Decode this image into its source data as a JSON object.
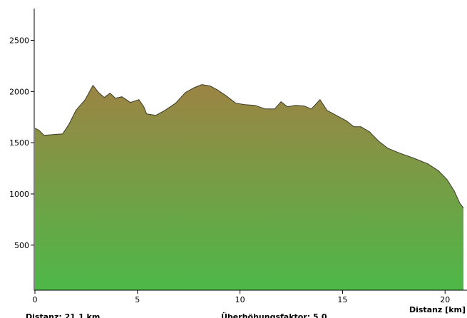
{
  "chart_data": {
    "type": "area",
    "x_label": "Distanz [km]",
    "footer_left": "Distanz: 21.1 km",
    "footer_center": "Überhöhungsfaktor: 5.0",
    "x": [
      0,
      0.2,
      0.45,
      0.9,
      1.35,
      1.65,
      2.0,
      2.45,
      2.83,
      3.1,
      3.38,
      3.66,
      3.93,
      4.24,
      4.66,
      5.07,
      5.31,
      5.45,
      5.9,
      6.34,
      6.86,
      7.34,
      7.79,
      8.14,
      8.55,
      8.93,
      9.34,
      9.79,
      10.24,
      10.72,
      11.24,
      11.69,
      12.0,
      12.31,
      12.72,
      13.14,
      13.48,
      13.9,
      14.24,
      14.69,
      15.2,
      15.55,
      15.9,
      16.31,
      16.76,
      17.2,
      17.79,
      18.48,
      19.17,
      19.69,
      20.1,
      20.45,
      20.72,
      20.9
    ],
    "values": [
      1642,
      1621,
      1572,
      1580,
      1586,
      1677,
      1816,
      1921,
      2061,
      1991,
      1942,
      1984,
      1935,
      1949,
      1893,
      1921,
      1851,
      1781,
      1768,
      1816,
      1886,
      1991,
      2040,
      2068,
      2054,
      2012,
      1956,
      1886,
      1872,
      1865,
      1830,
      1830,
      1900,
      1851,
      1865,
      1858,
      1830,
      1921,
      1816,
      1768,
      1712,
      1656,
      1656,
      1607,
      1516,
      1447,
      1398,
      1349,
      1293,
      1224,
      1140,
      1028,
      910,
      861
    ],
    "color_top": "#9c8444",
    "color_bottom": "#4db848",
    "xlim": [
      0,
      21.07
    ],
    "xticks": [
      0,
      5,
      10,
      15,
      20
    ],
    "ylim": [
      60,
      2810
    ],
    "yticks": [
      500,
      1000,
      1500,
      2000,
      2500
    ]
  }
}
